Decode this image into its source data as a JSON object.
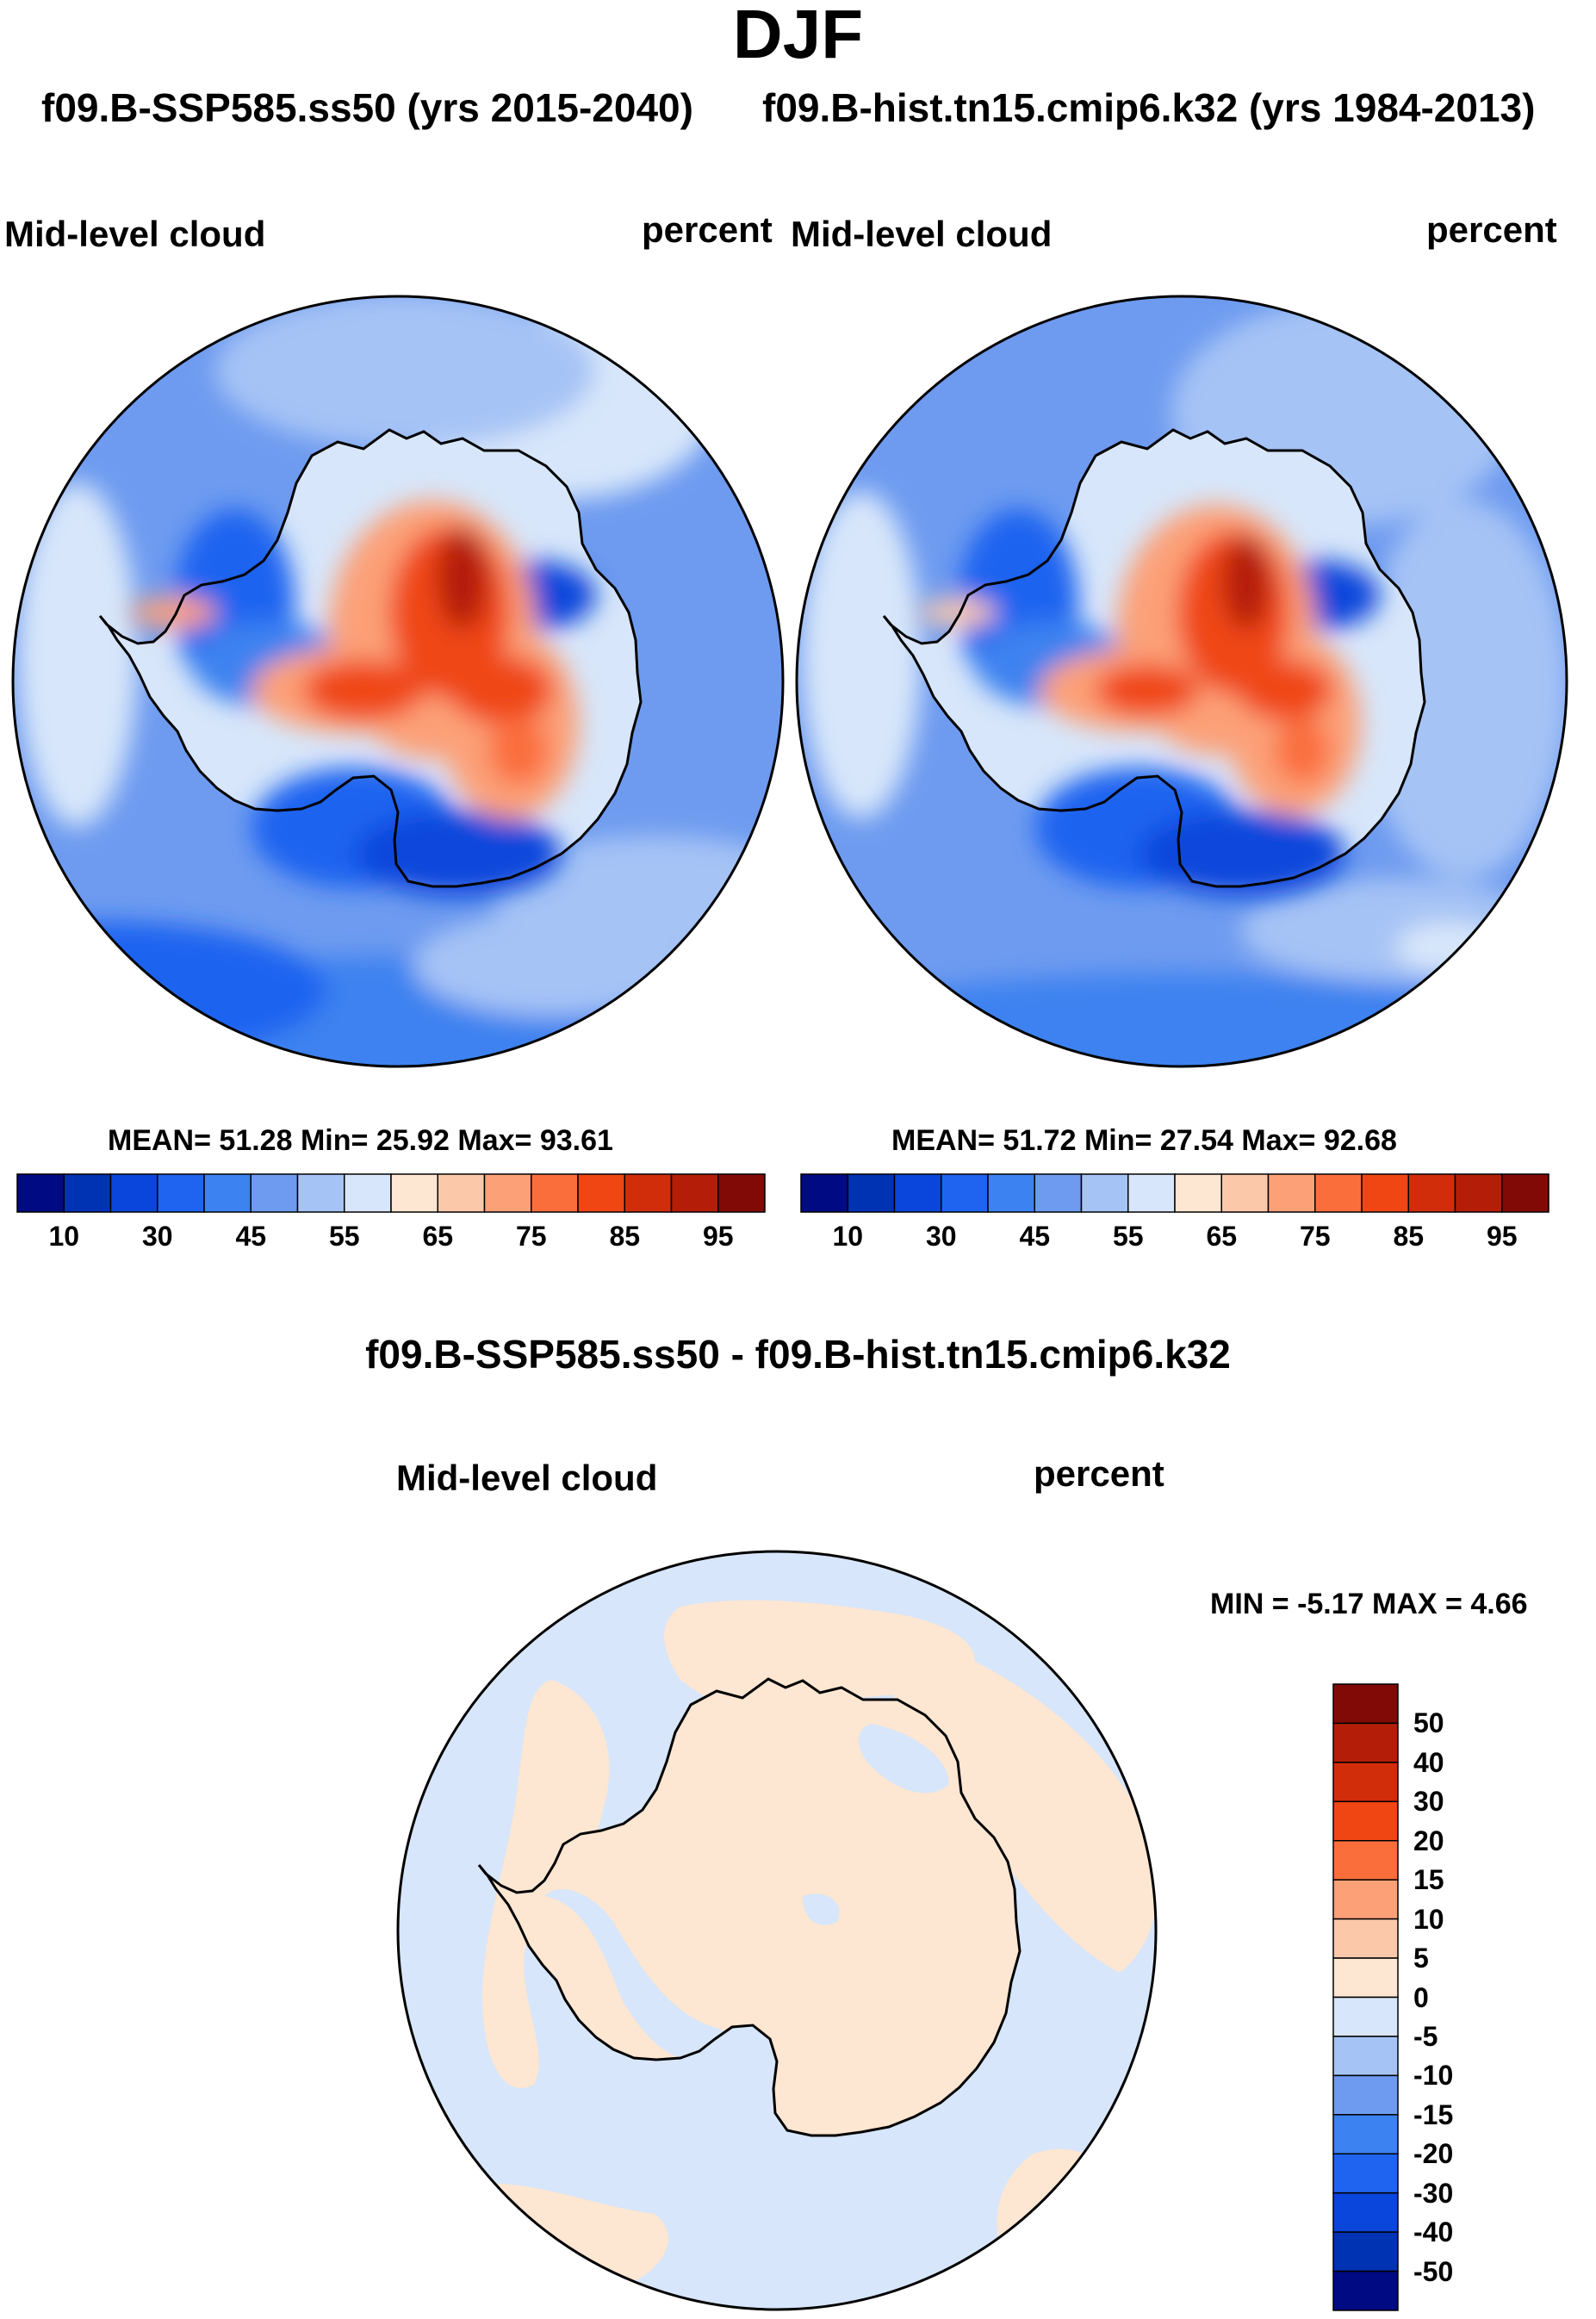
{
  "title": "DJF",
  "subtitle_left": "f09.B-SSP585.ss50 (yrs 2015-2040)",
  "subtitle_right": "f09.B-hist.tn15.cmip6.k32 (yrs 1984-2013)",
  "diff_title": "f09.B-SSP585.ss50 - f09.B-hist.tn15.cmip6.k32",
  "panels": [
    {
      "id": "ssp585",
      "variable": "Mid-level cloud",
      "units": "percent",
      "stats": {
        "mean_label": "MEAN=",
        "mean": "51.28",
        "min_label": "Min=",
        "min": "25.92",
        "max_label": "Max=",
        "max": "93.61"
      }
    },
    {
      "id": "hist",
      "variable": "Mid-level cloud",
      "units": "percent",
      "stats": {
        "mean_label": "MEAN=",
        "mean": "51.72",
        "min_label": "Min=",
        "min": "27.54",
        "max_label": "Max=",
        "max": "92.68"
      }
    },
    {
      "id": "diff",
      "variable": "Mid-level cloud",
      "units": "percent",
      "stats": {
        "min_label": "MIN =",
        "min": "-5.17",
        "max_label": "MAX =",
        "max": "4.66"
      }
    }
  ],
  "colorbar_main": {
    "colors": [
      "#000a82",
      "#0032b4",
      "#0a46dc",
      "#1e64f0",
      "#3c82f0",
      "#6e9bf0",
      "#a5c3f5",
      "#d7e6fa",
      "#fde6d2",
      "#fcc8aa",
      "#fca078",
      "#fa6e3c",
      "#f04614",
      "#d22d0a",
      "#b41e08",
      "#820a06"
    ],
    "tick_labels": [
      "10",
      "30",
      "45",
      "55",
      "65",
      "75",
      "85",
      "95"
    ]
  },
  "colorbar_diff": {
    "colors": [
      "#000a82",
      "#0032b4",
      "#0a46dc",
      "#1e64f0",
      "#3c82f0",
      "#6e9bf0",
      "#a5c3f5",
      "#d7e6fa",
      "#fde6d2",
      "#fcc8aa",
      "#fca078",
      "#fa6e3c",
      "#f04614",
      "#d22d0a",
      "#b41e08",
      "#820a06"
    ],
    "tick_labels": [
      "50",
      "40",
      "30",
      "20",
      "15",
      "10",
      "5",
      "0",
      "-5",
      "-10",
      "-15",
      "-20",
      "-30",
      "-40",
      "-50"
    ]
  },
  "chart_data": [
    {
      "type": "heatmap",
      "title": "f09.B-SSP585.ss50 (yrs 2015-2040)",
      "variable": "Mid-level cloud",
      "units": "percent",
      "season": "DJF",
      "projection": "South polar stereographic",
      "mean": 51.28,
      "min": 25.92,
      "max": 93.61,
      "contour_levels": [
        10,
        20,
        30,
        35,
        40,
        45,
        50,
        55,
        60,
        65,
        70,
        75,
        80,
        85,
        90,
        95
      ]
    },
    {
      "type": "heatmap",
      "title": "f09.B-hist.tn15.cmip6.k32 (yrs 1984-2013)",
      "variable": "Mid-level cloud",
      "units": "percent",
      "season": "DJF",
      "projection": "South polar stereographic",
      "mean": 51.72,
      "min": 27.54,
      "max": 92.68,
      "contour_levels": [
        10,
        20,
        30,
        35,
        40,
        45,
        50,
        55,
        60,
        65,
        70,
        75,
        80,
        85,
        90,
        95
      ]
    },
    {
      "type": "heatmap",
      "title": "f09.B-SSP585.ss50 - f09.B-hist.tn15.cmip6.k32",
      "variable": "Mid-level cloud",
      "units": "percent",
      "season": "DJF",
      "projection": "South polar stereographic",
      "min": -5.17,
      "max": 4.66,
      "contour_levels": [
        -50,
        -40,
        -30,
        -20,
        -15,
        -10,
        -5,
        0,
        5,
        10,
        15,
        20,
        30,
        40,
        50
      ]
    }
  ]
}
